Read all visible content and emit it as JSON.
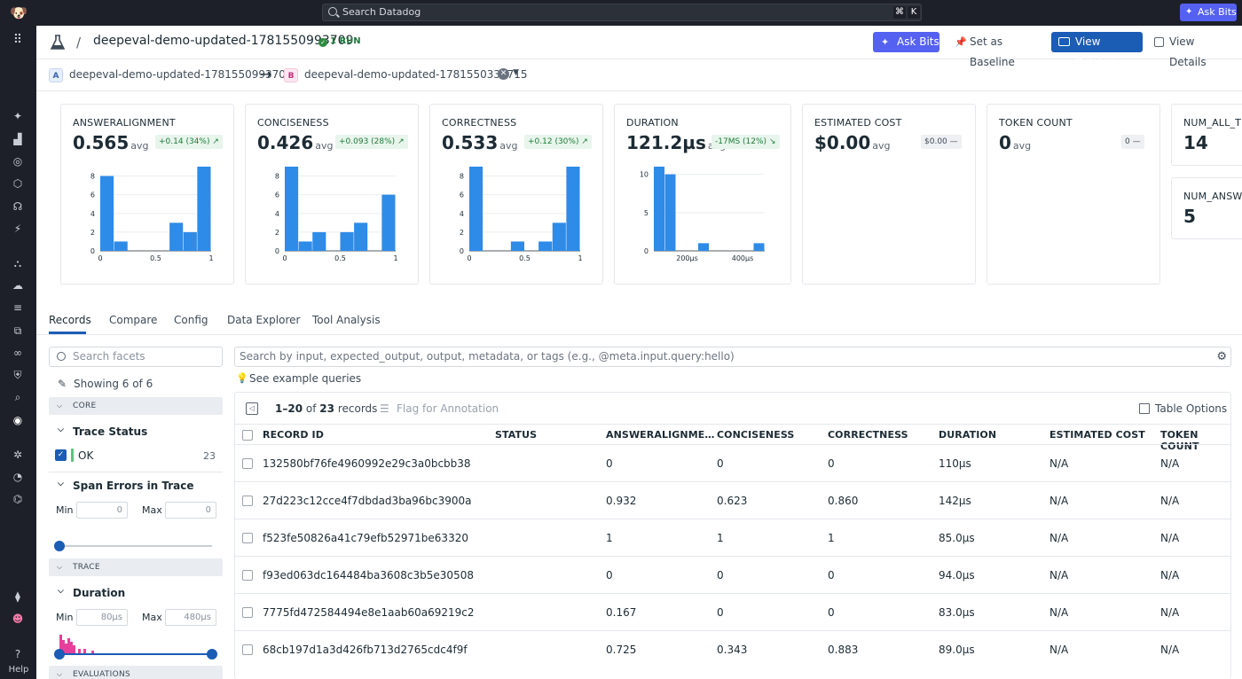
{
  "topbar": {
    "search_placeholder": "Search Datadog",
    "kbd_cmd": "⌘",
    "kbd_k": "K",
    "ask_bits": "Ask Bits"
  },
  "sidebar": {
    "help": "Help"
  },
  "header": {
    "run_title": "deepeval-demo-updated-1781550993709",
    "run_badge": "1 RUN",
    "ask_bits": "Ask Bits",
    "set_baseline": "Set as Baseline",
    "view_related": "View Related",
    "view_details": "View Details"
  },
  "compare": {
    "a_tag": "A",
    "a_name": "deepeval-demo-updated-1781550993709",
    "b_tag": "B",
    "b_name": "deepeval-demo-updated-1781550336715"
  },
  "metrics": [
    {
      "title": "ANSWERALIGNMENT",
      "value": "0.565",
      "avg": "avg",
      "delta": "+0.14 (34%)",
      "direction": "up",
      "hist": {
        "ymax": 9,
        "yticks": [
          0,
          2,
          4,
          6,
          8
        ],
        "xticks": [
          {
            "v": 0,
            "l": "0"
          },
          {
            "v": 0.5,
            "l": "0.5"
          },
          {
            "v": 1,
            "l": "1"
          }
        ],
        "xmin": 0,
        "xmax": 1,
        "bins": [
          [
            0,
            0.125,
            8
          ],
          [
            0.125,
            0.25,
            1
          ],
          [
            0.625,
            0.75,
            3
          ],
          [
            0.75,
            0.875,
            2
          ],
          [
            0.875,
            1,
            9
          ]
        ]
      }
    },
    {
      "title": "CONCISENESS",
      "value": "0.426",
      "avg": "avg",
      "delta": "+0.093 (28%)",
      "direction": "up",
      "hist": {
        "ymax": 9,
        "yticks": [
          0,
          2,
          4,
          6,
          8
        ],
        "xticks": [
          {
            "v": 0,
            "l": "0"
          },
          {
            "v": 0.5,
            "l": "0.5"
          },
          {
            "v": 1,
            "l": "1"
          }
        ],
        "xmin": 0,
        "xmax": 1,
        "bins": [
          [
            0,
            0.125,
            9
          ],
          [
            0.125,
            0.25,
            1
          ],
          [
            0.25,
            0.375,
            2
          ],
          [
            0.5,
            0.625,
            2
          ],
          [
            0.625,
            0.75,
            3
          ],
          [
            0.875,
            1,
            6
          ]
        ]
      }
    },
    {
      "title": "CORRECTNESS",
      "value": "0.533",
      "avg": "avg",
      "delta": "+0.12 (30%)",
      "direction": "up",
      "hist": {
        "ymax": 9,
        "yticks": [
          0,
          2,
          4,
          6,
          8
        ],
        "xticks": [
          {
            "v": 0,
            "l": "0"
          },
          {
            "v": 0.5,
            "l": "0.5"
          },
          {
            "v": 1,
            "l": "1"
          }
        ],
        "xmin": 0,
        "xmax": 1,
        "bins": [
          [
            0,
            0.125,
            9
          ],
          [
            0.375,
            0.5,
            1
          ],
          [
            0.625,
            0.75,
            1
          ],
          [
            0.75,
            0.875,
            3
          ],
          [
            0.875,
            1,
            9
          ]
        ]
      }
    },
    {
      "title": "DURATION",
      "value": "121.2µs",
      "avg": "avg",
      "delta": "-17MS (12%)",
      "direction": "down",
      "hist": {
        "ymax": 11,
        "yticks": [
          0,
          5,
          10
        ],
        "xticks": [
          {
            "v": 200,
            "l": "200µs"
          },
          {
            "v": 400,
            "l": "400µs"
          }
        ],
        "xmin": 80,
        "xmax": 480,
        "bins": [
          [
            80,
            120,
            11
          ],
          [
            120,
            160,
            10
          ],
          [
            240,
            280,
            1
          ],
          [
            440,
            480,
            1
          ]
        ]
      }
    },
    {
      "title": "ESTIMATED COST",
      "value": "$0.00",
      "avg": "avg",
      "delta": "$0.00 —",
      "direction": "flat",
      "hist": null
    },
    {
      "title": "TOKEN COUNT",
      "value": "0",
      "avg": "avg",
      "delta": "0 —",
      "direction": "flat",
      "hist": null
    }
  ],
  "side_metrics": [
    {
      "title": "NUM_ALL_T",
      "value": "14"
    },
    {
      "title": "NUM_ANSW",
      "value": "5"
    }
  ],
  "tabs": [
    "Records",
    "Compare",
    "Config",
    "Data Explorer",
    "Tool Analysis"
  ],
  "facets": {
    "search_placeholder": "Search facets",
    "showing": "Showing 6 of 6",
    "core_label": "CORE",
    "trace_status": "Trace Status",
    "ok_label": "OK",
    "ok_count": "23",
    "span_errors": "Span Errors in Trace",
    "min_label": "Min",
    "max_label": "Max",
    "span_min": "0",
    "span_max": "0",
    "trace_label": "TRACE",
    "duration": "Duration",
    "dur_min": "80µs",
    "dur_max": "480µs",
    "evaluations_label": "EVALUATIONS"
  },
  "records": {
    "search_placeholder": "Search by input, expected_output, output, metadata, or tags (e.g., @meta.input.query:hello)",
    "examples": "See example queries",
    "count_range": "1–20",
    "count_of": "of",
    "count_total": "23",
    "count_label": "records",
    "flag": "Flag for Annotation",
    "table_options": "Table Options",
    "columns": [
      "RECORD ID",
      "STATUS",
      "ANSWERALIGNME…",
      "CONCISENESS",
      "CORRECTNESS",
      "DURATION",
      "ESTIMATED COST",
      "TOKEN COUNT"
    ],
    "rows": [
      [
        "132580bf76fe4960992e29c3a0bcbb38",
        "",
        "0",
        "0",
        "0",
        "110µs",
        "N/A",
        "N/A"
      ],
      [
        "27d223c12cce4f7dbdad3ba96bc3900a",
        "",
        "0.932",
        "0.623",
        "0.860",
        "142µs",
        "N/A",
        "N/A"
      ],
      [
        "f523fe50826a41c79efb52971be63320",
        "",
        "1",
        "1",
        "1",
        "85.0µs",
        "N/A",
        "N/A"
      ],
      [
        "f93ed063dc164484ba3608c3b5e30508",
        "",
        "0",
        "0",
        "0",
        "94.0µs",
        "N/A",
        "N/A"
      ],
      [
        "7775fd472584494e8e1aab60a69219c2",
        "",
        "0.167",
        "0",
        "0",
        "83.0µs",
        "N/A",
        "N/A"
      ],
      [
        "68cb197d1a3d426fb713d2765cdc4f9f",
        "",
        "0.725",
        "0.343",
        "0.883",
        "89.0µs",
        "N/A",
        "N/A"
      ]
    ]
  },
  "colors": {
    "bar": "#2e8be8",
    "accent": "#1b5cb5",
    "bits": "#5561f0",
    "duration_hist": "#e6409b"
  }
}
